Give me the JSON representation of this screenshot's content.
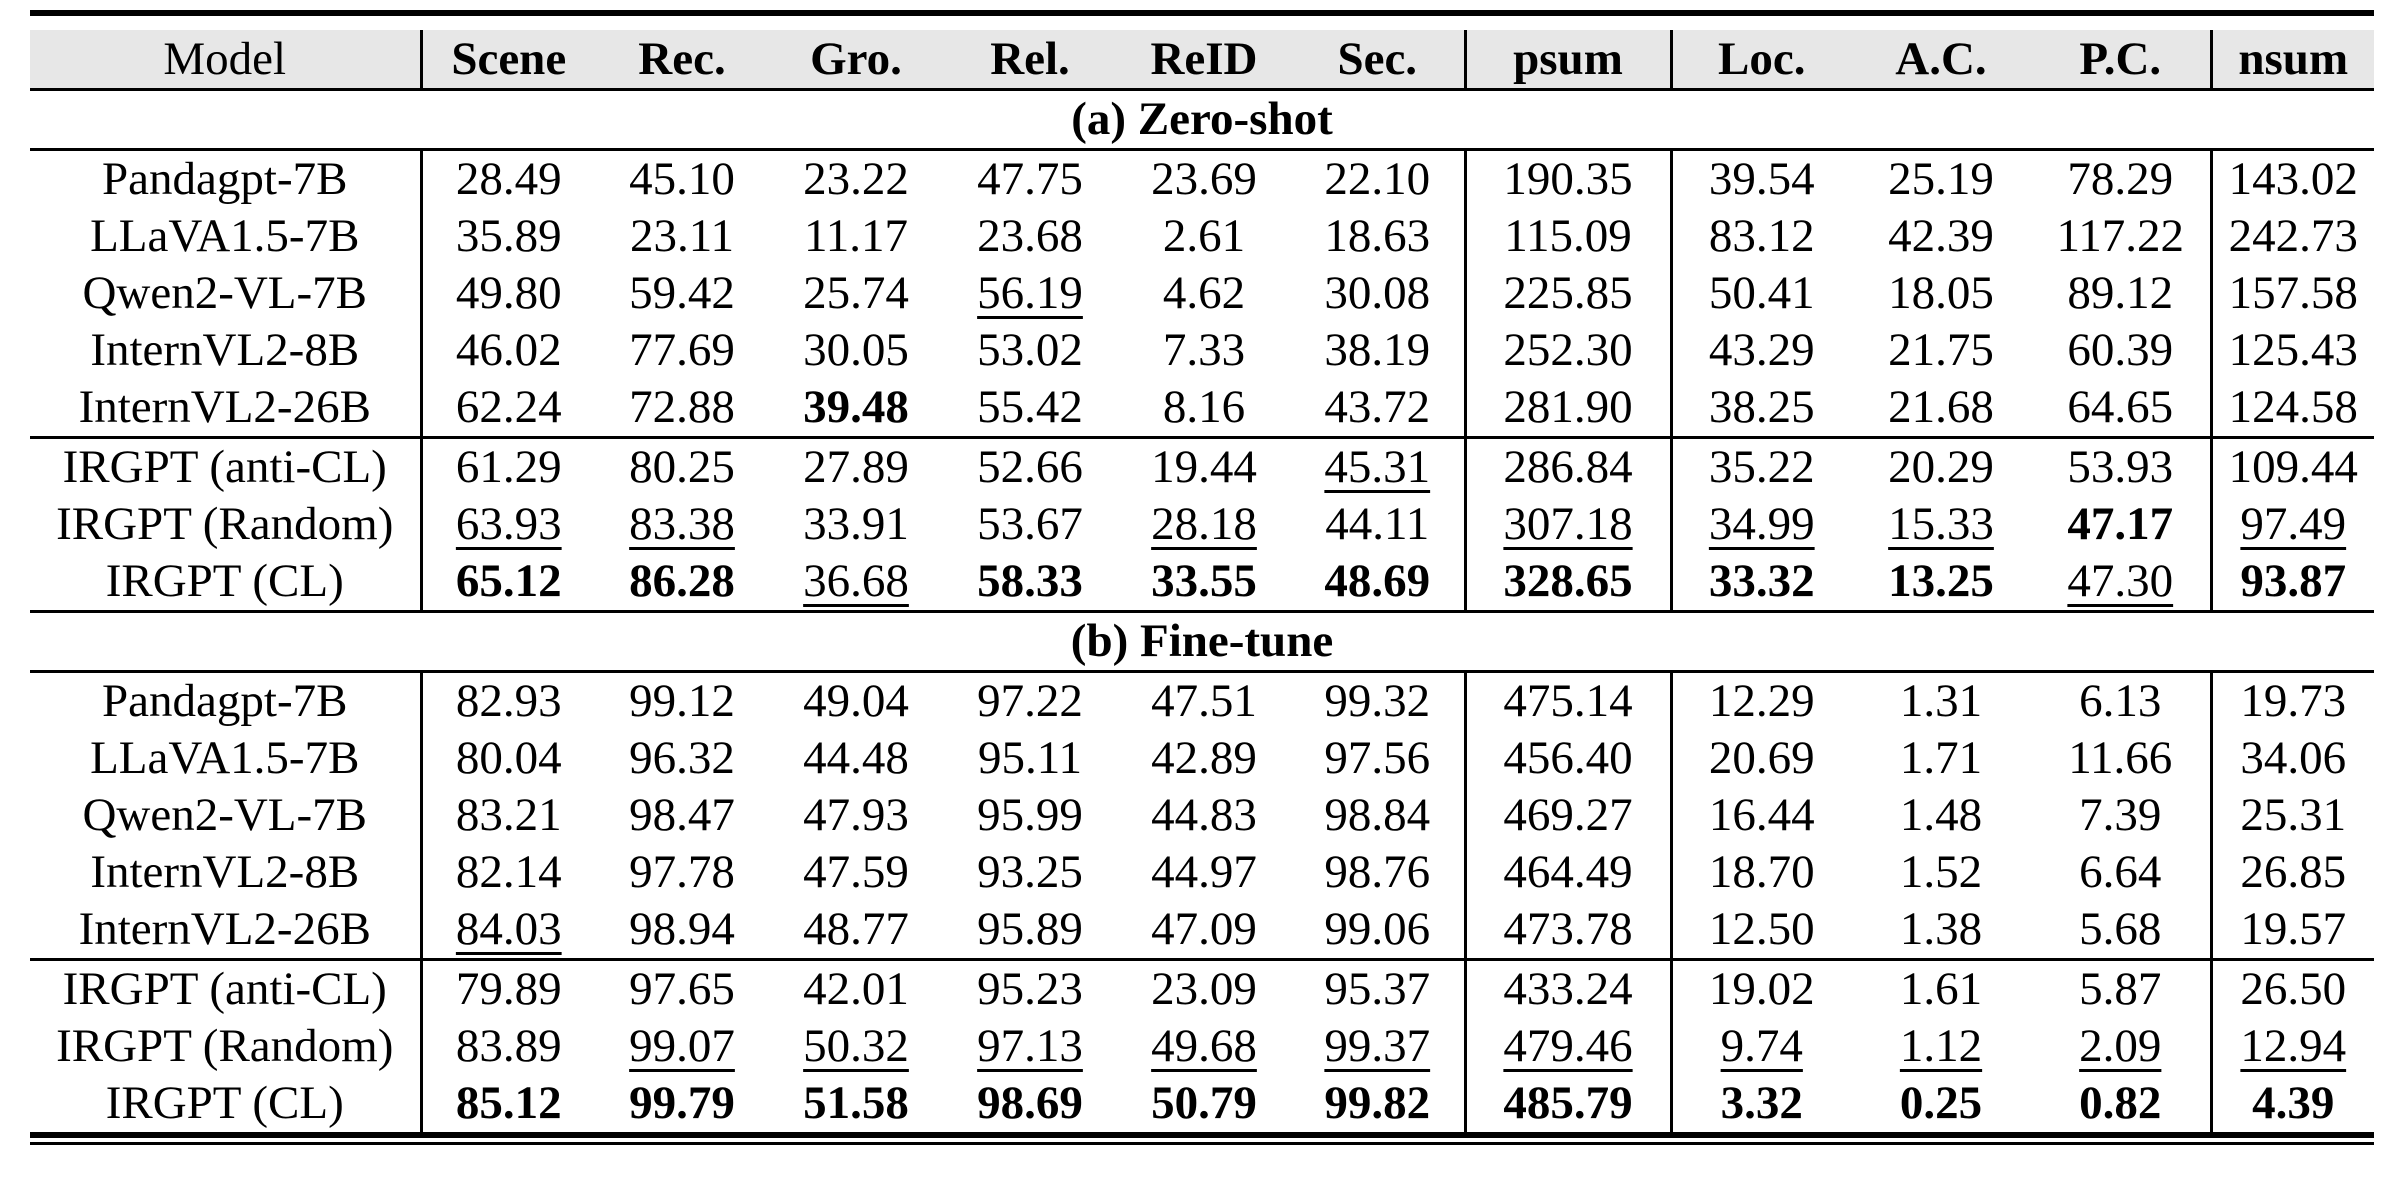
{
  "page": {
    "background": "#ffffff",
    "text_color": "#000000"
  },
  "table": {
    "header_bg": "#e7e7e7",
    "rule_color": "#000000",
    "columns": [
      "Model",
      "Scene",
      "Rec.",
      "Gro.",
      "Rel.",
      "ReID",
      "Sec.",
      "psum",
      "Loc.",
      "A.C.",
      "P.C.",
      "nsum"
    ],
    "sections": [
      {
        "label": "(a) Zero-shot",
        "rows": [
          {
            "model": "Pandagpt-7B",
            "divider": false,
            "cells": [
              {
                "text": "28.49",
                "emph": "none"
              },
              {
                "text": "45.10",
                "emph": "none"
              },
              {
                "text": "23.22",
                "emph": "none"
              },
              {
                "text": "47.75",
                "emph": "none"
              },
              {
                "text": "23.69",
                "emph": "none"
              },
              {
                "text": "22.10",
                "emph": "none"
              },
              {
                "text": "190.35",
                "emph": "none"
              },
              {
                "text": "39.54",
                "emph": "none"
              },
              {
                "text": "25.19",
                "emph": "none"
              },
              {
                "text": "78.29",
                "emph": "none"
              },
              {
                "text": "143.02",
                "emph": "none"
              }
            ]
          },
          {
            "model": "LLaVA1.5-7B",
            "divider": false,
            "cells": [
              {
                "text": "35.89",
                "emph": "none"
              },
              {
                "text": "23.11",
                "emph": "none"
              },
              {
                "text": "11.17",
                "emph": "none"
              },
              {
                "text": "23.68",
                "emph": "none"
              },
              {
                "text": "2.61",
                "emph": "none"
              },
              {
                "text": "18.63",
                "emph": "none"
              },
              {
                "text": "115.09",
                "emph": "none"
              },
              {
                "text": "83.12",
                "emph": "none"
              },
              {
                "text": "42.39",
                "emph": "none"
              },
              {
                "text": "117.22",
                "emph": "none"
              },
              {
                "text": "242.73",
                "emph": "none"
              }
            ]
          },
          {
            "model": "Qwen2-VL-7B",
            "divider": false,
            "cells": [
              {
                "text": "49.80",
                "emph": "none"
              },
              {
                "text": "59.42",
                "emph": "none"
              },
              {
                "text": "25.74",
                "emph": "none"
              },
              {
                "text": "56.19",
                "emph": "underline"
              },
              {
                "text": "4.62",
                "emph": "none"
              },
              {
                "text": "30.08",
                "emph": "none"
              },
              {
                "text": "225.85",
                "emph": "none"
              },
              {
                "text": "50.41",
                "emph": "none"
              },
              {
                "text": "18.05",
                "emph": "none"
              },
              {
                "text": "89.12",
                "emph": "none"
              },
              {
                "text": "157.58",
                "emph": "none"
              }
            ]
          },
          {
            "model": "InternVL2-8B",
            "divider": false,
            "cells": [
              {
                "text": "46.02",
                "emph": "none"
              },
              {
                "text": "77.69",
                "emph": "none"
              },
              {
                "text": "30.05",
                "emph": "none"
              },
              {
                "text": "53.02",
                "emph": "none"
              },
              {
                "text": "7.33",
                "emph": "none"
              },
              {
                "text": "38.19",
                "emph": "none"
              },
              {
                "text": "252.30",
                "emph": "none"
              },
              {
                "text": "43.29",
                "emph": "none"
              },
              {
                "text": "21.75",
                "emph": "none"
              },
              {
                "text": "60.39",
                "emph": "none"
              },
              {
                "text": "125.43",
                "emph": "none"
              }
            ]
          },
          {
            "model": "InternVL2-26B",
            "divider": false,
            "cells": [
              {
                "text": "62.24",
                "emph": "none"
              },
              {
                "text": "72.88",
                "emph": "none"
              },
              {
                "text": "39.48",
                "emph": "bold"
              },
              {
                "text": "55.42",
                "emph": "none"
              },
              {
                "text": "8.16",
                "emph": "none"
              },
              {
                "text": "43.72",
                "emph": "none"
              },
              {
                "text": "281.90",
                "emph": "none"
              },
              {
                "text": "38.25",
                "emph": "none"
              },
              {
                "text": "21.68",
                "emph": "none"
              },
              {
                "text": "64.65",
                "emph": "none"
              },
              {
                "text": "124.58",
                "emph": "none"
              }
            ]
          },
          {
            "model": "IRGPT (anti-CL)",
            "divider": true,
            "cells": [
              {
                "text": "61.29",
                "emph": "none"
              },
              {
                "text": "80.25",
                "emph": "none"
              },
              {
                "text": "27.89",
                "emph": "none"
              },
              {
                "text": "52.66",
                "emph": "none"
              },
              {
                "text": "19.44",
                "emph": "none"
              },
              {
                "text": "45.31",
                "emph": "underline"
              },
              {
                "text": "286.84",
                "emph": "none"
              },
              {
                "text": "35.22",
                "emph": "none"
              },
              {
                "text": "20.29",
                "emph": "none"
              },
              {
                "text": "53.93",
                "emph": "none"
              },
              {
                "text": "109.44",
                "emph": "none"
              }
            ]
          },
          {
            "model": "IRGPT (Random)",
            "divider": false,
            "cells": [
              {
                "text": "63.93",
                "emph": "underline"
              },
              {
                "text": "83.38",
                "emph": "underline"
              },
              {
                "text": "33.91",
                "emph": "none"
              },
              {
                "text": "53.67",
                "emph": "none"
              },
              {
                "text": "28.18",
                "emph": "underline"
              },
              {
                "text": "44.11",
                "emph": "none"
              },
              {
                "text": "307.18",
                "emph": "underline"
              },
              {
                "text": "34.99",
                "emph": "underline"
              },
              {
                "text": "15.33",
                "emph": "underline"
              },
              {
                "text": "47.17",
                "emph": "bold"
              },
              {
                "text": "97.49",
                "emph": "underline"
              }
            ]
          },
          {
            "model": "IRGPT (CL)",
            "divider": false,
            "cells": [
              {
                "text": "65.12",
                "emph": "bold"
              },
              {
                "text": "86.28",
                "emph": "bold"
              },
              {
                "text": "36.68",
                "emph": "underline"
              },
              {
                "text": "58.33",
                "emph": "bold"
              },
              {
                "text": "33.55",
                "emph": "bold"
              },
              {
                "text": "48.69",
                "emph": "bold"
              },
              {
                "text": "328.65",
                "emph": "bold"
              },
              {
                "text": "33.32",
                "emph": "bold"
              },
              {
                "text": "13.25",
                "emph": "bold"
              },
              {
                "text": "47.30",
                "emph": "underline"
              },
              {
                "text": "93.87",
                "emph": "bold"
              }
            ]
          }
        ]
      },
      {
        "label": "(b) Fine-tune",
        "rows": [
          {
            "model": "Pandagpt-7B",
            "divider": false,
            "cells": [
              {
                "text": "82.93",
                "emph": "none"
              },
              {
                "text": "99.12",
                "emph": "none"
              },
              {
                "text": "49.04",
                "emph": "none"
              },
              {
                "text": "97.22",
                "emph": "none"
              },
              {
                "text": "47.51",
                "emph": "none"
              },
              {
                "text": "99.32",
                "emph": "none"
              },
              {
                "text": "475.14",
                "emph": "none"
              },
              {
                "text": "12.29",
                "emph": "none"
              },
              {
                "text": "1.31",
                "emph": "none"
              },
              {
                "text": "6.13",
                "emph": "none"
              },
              {
                "text": "19.73",
                "emph": "none"
              }
            ]
          },
          {
            "model": "LLaVA1.5-7B",
            "divider": false,
            "cells": [
              {
                "text": "80.04",
                "emph": "none"
              },
              {
                "text": "96.32",
                "emph": "none"
              },
              {
                "text": "44.48",
                "emph": "none"
              },
              {
                "text": "95.11",
                "emph": "none"
              },
              {
                "text": "42.89",
                "emph": "none"
              },
              {
                "text": "97.56",
                "emph": "none"
              },
              {
                "text": "456.40",
                "emph": "none"
              },
              {
                "text": "20.69",
                "emph": "none"
              },
              {
                "text": "1.71",
                "emph": "none"
              },
              {
                "text": "11.66",
                "emph": "none"
              },
              {
                "text": "34.06",
                "emph": "none"
              }
            ]
          },
          {
            "model": "Qwen2-VL-7B",
            "divider": false,
            "cells": [
              {
                "text": "83.21",
                "emph": "none"
              },
              {
                "text": "98.47",
                "emph": "none"
              },
              {
                "text": "47.93",
                "emph": "none"
              },
              {
                "text": "95.99",
                "emph": "none"
              },
              {
                "text": "44.83",
                "emph": "none"
              },
              {
                "text": "98.84",
                "emph": "none"
              },
              {
                "text": "469.27",
                "emph": "none"
              },
              {
                "text": "16.44",
                "emph": "none"
              },
              {
                "text": "1.48",
                "emph": "none"
              },
              {
                "text": "7.39",
                "emph": "none"
              },
              {
                "text": "25.31",
                "emph": "none"
              }
            ]
          },
          {
            "model": "InternVL2-8B",
            "divider": false,
            "cells": [
              {
                "text": "82.14",
                "emph": "none"
              },
              {
                "text": "97.78",
                "emph": "none"
              },
              {
                "text": "47.59",
                "emph": "none"
              },
              {
                "text": "93.25",
                "emph": "none"
              },
              {
                "text": "44.97",
                "emph": "none"
              },
              {
                "text": "98.76",
                "emph": "none"
              },
              {
                "text": "464.49",
                "emph": "none"
              },
              {
                "text": "18.70",
                "emph": "none"
              },
              {
                "text": "1.52",
                "emph": "none"
              },
              {
                "text": "6.64",
                "emph": "none"
              },
              {
                "text": "26.85",
                "emph": "none"
              }
            ]
          },
          {
            "model": "InternVL2-26B",
            "divider": false,
            "cells": [
              {
                "text": "84.03",
                "emph": "underline"
              },
              {
                "text": "98.94",
                "emph": "none"
              },
              {
                "text": "48.77",
                "emph": "none"
              },
              {
                "text": "95.89",
                "emph": "none"
              },
              {
                "text": "47.09",
                "emph": "none"
              },
              {
                "text": "99.06",
                "emph": "none"
              },
              {
                "text": "473.78",
                "emph": "none"
              },
              {
                "text": "12.50",
                "emph": "none"
              },
              {
                "text": "1.38",
                "emph": "none"
              },
              {
                "text": "5.68",
                "emph": "none"
              },
              {
                "text": "19.57",
                "emph": "none"
              }
            ]
          },
          {
            "model": "IRGPT (anti-CL)",
            "divider": true,
            "cells": [
              {
                "text": "79.89",
                "emph": "none"
              },
              {
                "text": "97.65",
                "emph": "none"
              },
              {
                "text": "42.01",
                "emph": "none"
              },
              {
                "text": "95.23",
                "emph": "none"
              },
              {
                "text": "23.09",
                "emph": "none"
              },
              {
                "text": "95.37",
                "emph": "none"
              },
              {
                "text": "433.24",
                "emph": "none"
              },
              {
                "text": "19.02",
                "emph": "none"
              },
              {
                "text": "1.61",
                "emph": "none"
              },
              {
                "text": "5.87",
                "emph": "none"
              },
              {
                "text": "26.50",
                "emph": "none"
              }
            ]
          },
          {
            "model": "IRGPT (Random)",
            "divider": false,
            "cells": [
              {
                "text": "83.89",
                "emph": "none"
              },
              {
                "text": "99.07",
                "emph": "underline"
              },
              {
                "text": "50.32",
                "emph": "underline"
              },
              {
                "text": "97.13",
                "emph": "underline"
              },
              {
                "text": "49.68",
                "emph": "underline"
              },
              {
                "text": "99.37",
                "emph": "underline"
              },
              {
                "text": "479.46",
                "emph": "underline"
              },
              {
                "text": "9.74",
                "emph": "underline"
              },
              {
                "text": "1.12",
                "emph": "underline"
              },
              {
                "text": "2.09",
                "emph": "underline"
              },
              {
                "text": "12.94",
                "emph": "underline"
              }
            ]
          },
          {
            "model": "IRGPT (CL)",
            "divider": false,
            "cells": [
              {
                "text": "85.12",
                "emph": "bold"
              },
              {
                "text": "99.79",
                "emph": "bold"
              },
              {
                "text": "51.58",
                "emph": "bold"
              },
              {
                "text": "98.69",
                "emph": "bold"
              },
              {
                "text": "50.79",
                "emph": "bold"
              },
              {
                "text": "99.82",
                "emph": "bold"
              },
              {
                "text": "485.79",
                "emph": "bold"
              },
              {
                "text": "3.32",
                "emph": "bold"
              },
              {
                "text": "0.25",
                "emph": "bold"
              },
              {
                "text": "0.82",
                "emph": "bold"
              },
              {
                "text": "4.39",
                "emph": "bold"
              }
            ]
          }
        ]
      }
    ]
  }
}
